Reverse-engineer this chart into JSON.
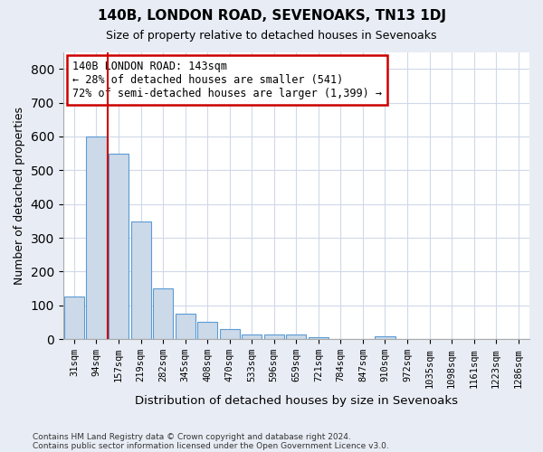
{
  "title": "140B, LONDON ROAD, SEVENOAKS, TN13 1DJ",
  "subtitle": "Size of property relative to detached houses in Sevenoaks",
  "xlabel": "Distribution of detached houses by size in Sevenoaks",
  "ylabel": "Number of detached properties",
  "bar_labels": [
    "31sqm",
    "94sqm",
    "157sqm",
    "219sqm",
    "282sqm",
    "345sqm",
    "408sqm",
    "470sqm",
    "533sqm",
    "596sqm",
    "659sqm",
    "721sqm",
    "784sqm",
    "847sqm",
    "910sqm",
    "972sqm",
    "1035sqm",
    "1098sqm",
    "1161sqm",
    "1223sqm",
    "1286sqm"
  ],
  "bar_values": [
    125,
    600,
    550,
    348,
    150,
    75,
    52,
    30,
    15,
    13,
    13,
    7,
    0,
    0,
    8,
    0,
    0,
    0,
    0,
    0,
    0
  ],
  "bar_color": "#ccd9e8",
  "bar_edge_color": "#5b9bd5",
  "vline_color": "#cc0000",
  "ylim": [
    0,
    850
  ],
  "yticks": [
    0,
    100,
    200,
    300,
    400,
    500,
    600,
    700,
    800
  ],
  "annotation_text": "140B LONDON ROAD: 143sqm\n← 28% of detached houses are smaller (541)\n72% of semi-detached houses are larger (1,399) →",
  "annotation_box_color": "#cc0000",
  "footnote1": "Contains HM Land Registry data © Crown copyright and database right 2024.",
  "footnote2": "Contains public sector information licensed under the Open Government Licence v3.0.",
  "fig_bg_color": "#e8edf5",
  "plot_bg_color": "#ffffff"
}
